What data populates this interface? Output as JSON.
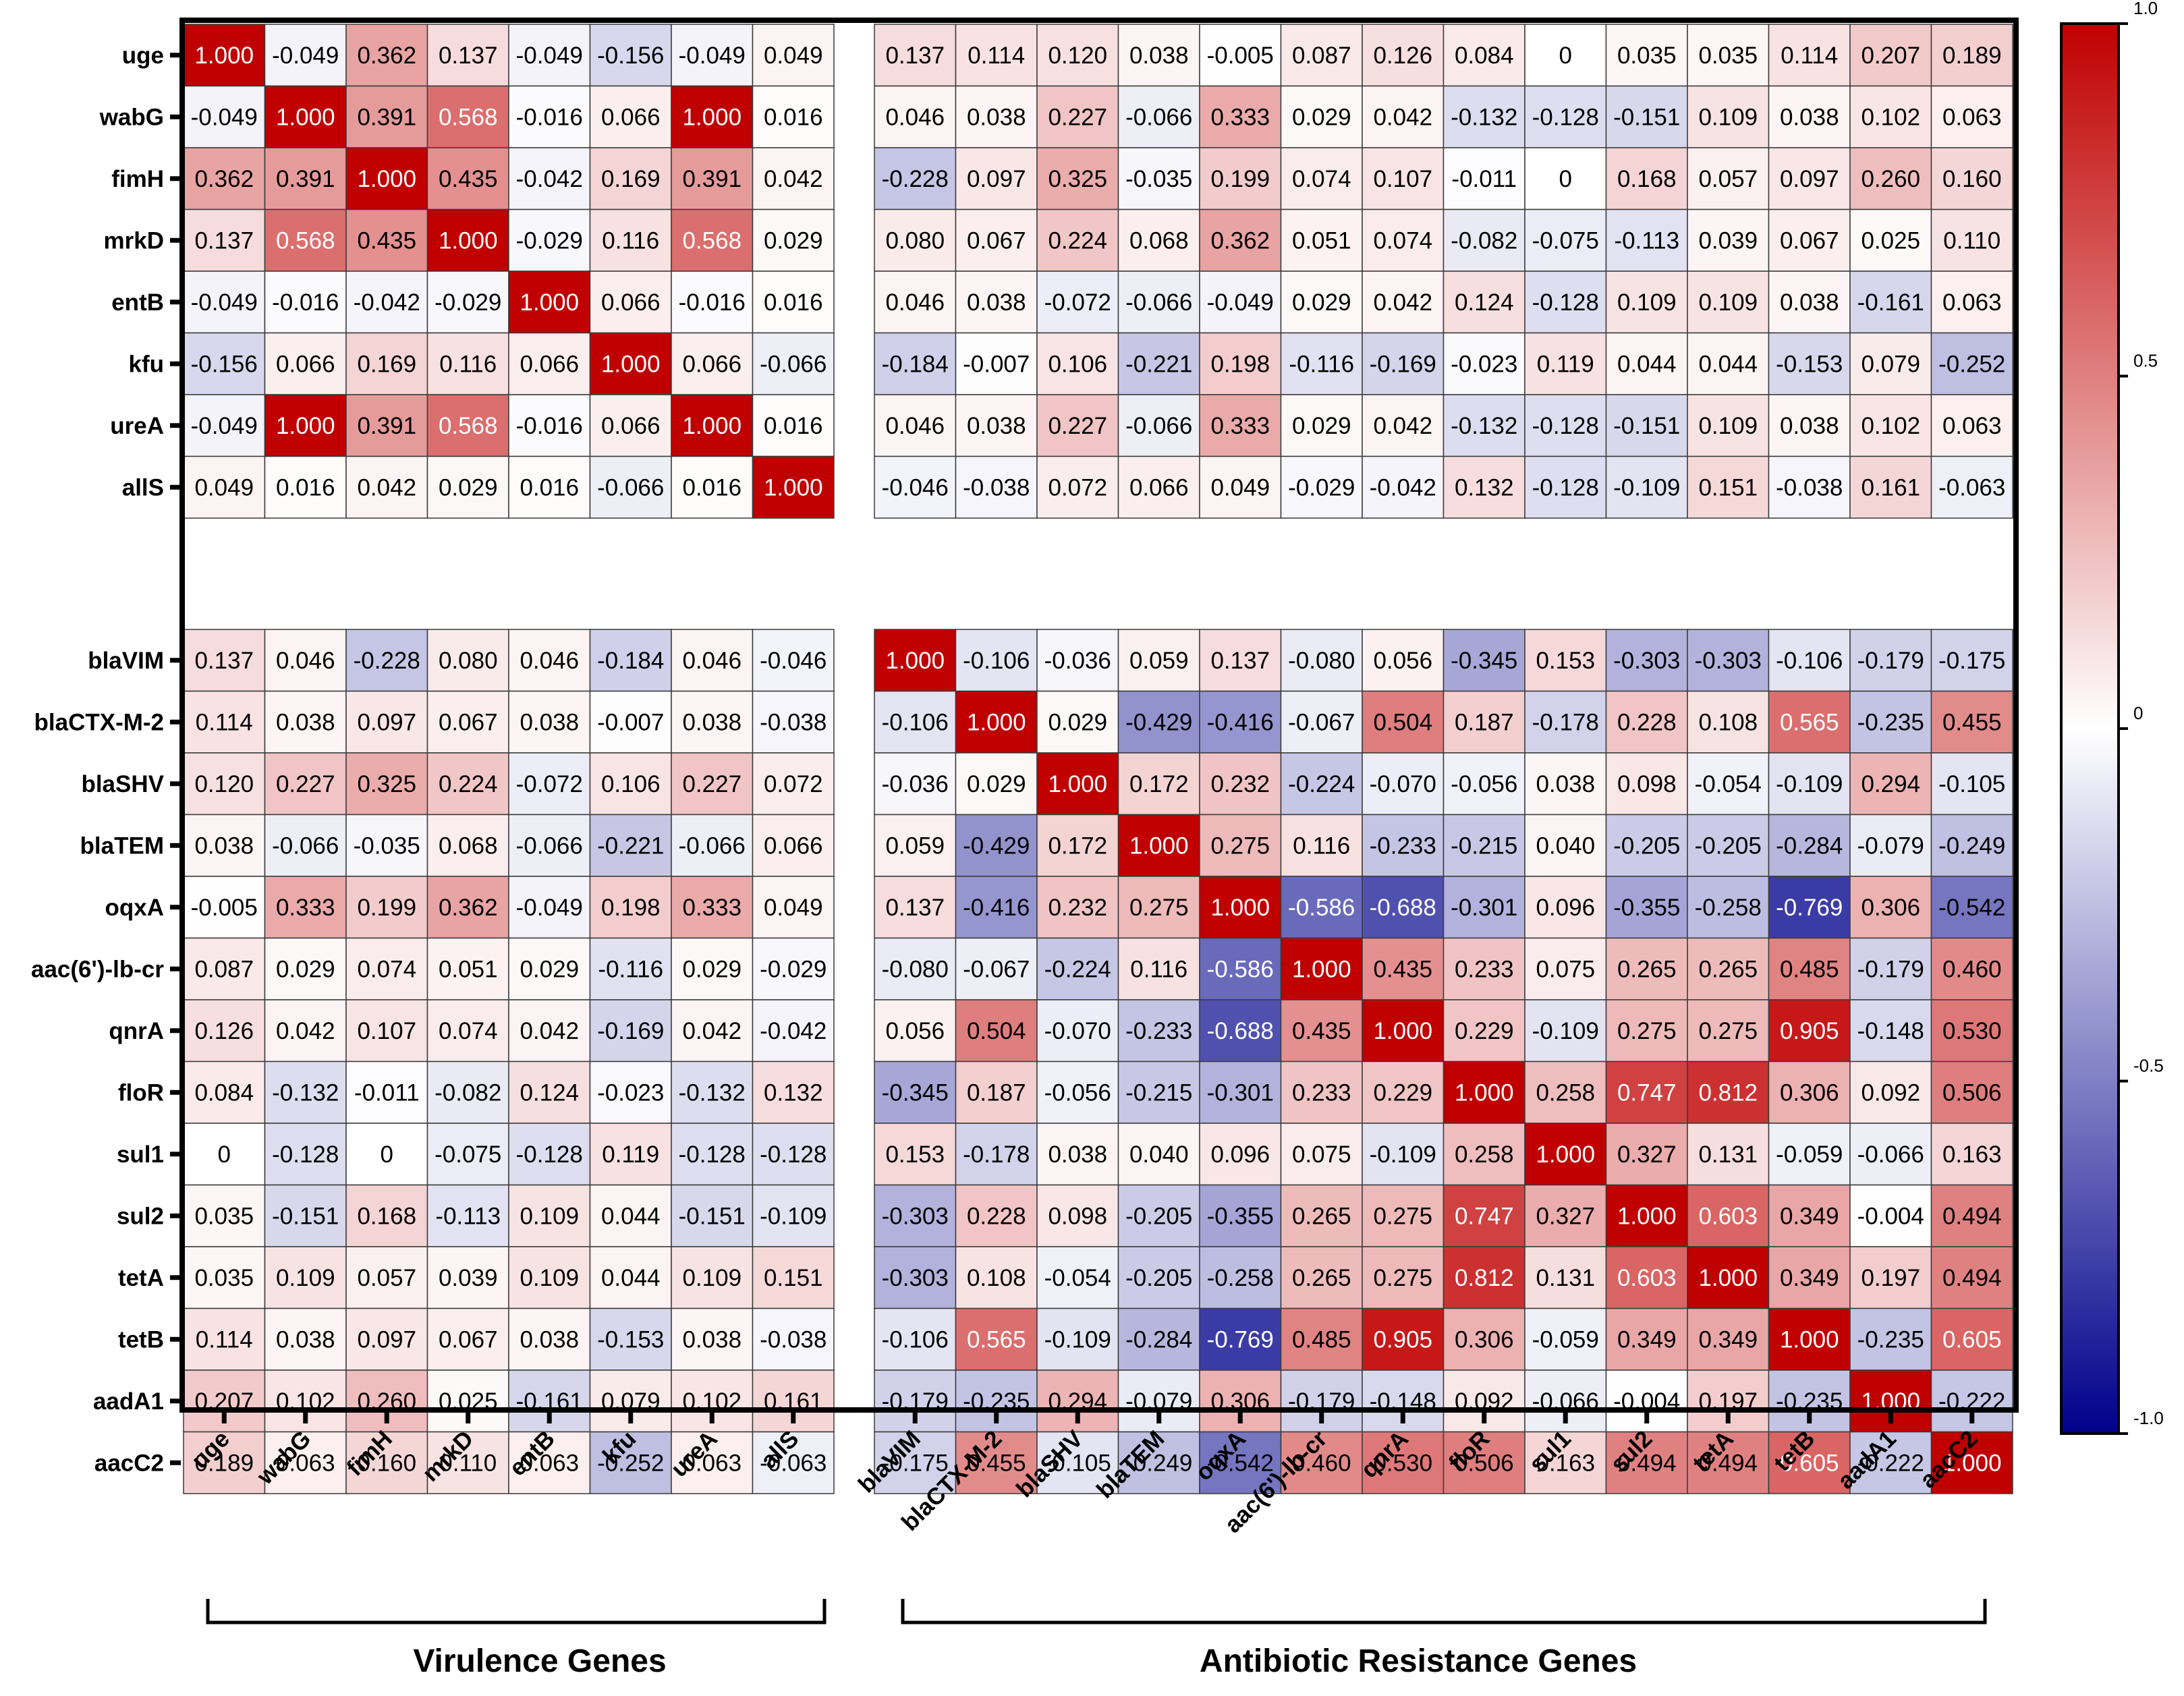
{
  "chart_data": {
    "type": "heatmap",
    "title": "",
    "colorscale": {
      "min": -1.0,
      "max": 1.0,
      "colors": [
        "#00008b",
        "#ffffff",
        "#c00000"
      ],
      "tick_values": [
        1.0,
        0.5,
        0,
        -0.5,
        -1.0
      ],
      "tick_labels": [
        "1.0",
        "0.5",
        "0",
        "-0.5",
        "-1.0"
      ]
    },
    "groups": [
      {
        "name": "Virulence Genes",
        "genes": [
          "uge",
          "wabG",
          "fimH",
          "mrkD",
          "entB",
          "kfu",
          "ureA",
          "allS"
        ]
      },
      {
        "name": "Antibiotic Resistance Genes",
        "genes": [
          "blaVIM",
          "blaCTX-M-2",
          "blaSHV",
          "blaTEM",
          "oqxA",
          "aac(6')-lb-cr",
          "qnrA",
          "floR",
          "sul1",
          "sul2",
          "tetA",
          "tetB",
          "aadA1",
          "aacC2"
        ]
      }
    ],
    "rows": [
      "uge",
      "wabG",
      "fimH",
      "mrkD",
      "entB",
      "kfu",
      "ureA",
      "allS",
      "blaVIM",
      "blaCTX-M-2",
      "blaSHV",
      "blaTEM",
      "oqxA",
      "aac(6')-lb-cr",
      "qnrA",
      "floR",
      "sul1",
      "sul2",
      "tetA",
      "tetB",
      "aadA1",
      "aacC2"
    ],
    "columns": [
      "uge",
      "wabG",
      "fimH",
      "mrkD",
      "entB",
      "kfu",
      "ureA",
      "allS",
      "blaVIM",
      "blaCTX-M-2",
      "blaSHV",
      "blaTEM",
      "oqxA",
      "aac(6')-lb-cr",
      "qnrA",
      "floR",
      "sul1",
      "sul2",
      "tetA",
      "tetB",
      "aadA1",
      "aacC2"
    ],
    "values": [
      [
        "1.000",
        "-0.049",
        "0.362",
        "0.137",
        "-0.049",
        "-0.156",
        "-0.049",
        "0.049",
        "0.137",
        "0.114",
        "0.120",
        "0.038",
        "-0.005",
        "0.087",
        "0.126",
        "0.084",
        "0",
        "0.035",
        "0.035",
        "0.114",
        "0.207",
        "0.189"
      ],
      [
        "-0.049",
        "1.000",
        "0.391",
        "0.568",
        "-0.016",
        "0.066",
        "1.000",
        "0.016",
        "0.046",
        "0.038",
        "0.227",
        "-0.066",
        "0.333",
        "0.029",
        "0.042",
        "-0.132",
        "-0.128",
        "-0.151",
        "0.109",
        "0.038",
        "0.102",
        "0.063"
      ],
      [
        "0.362",
        "0.391",
        "1.000",
        "0.435",
        "-0.042",
        "0.169",
        "0.391",
        "0.042",
        "-0.228",
        "0.097",
        "0.325",
        "-0.035",
        "0.199",
        "0.074",
        "0.107",
        "-0.011",
        "0",
        "0.168",
        "0.057",
        "0.097",
        "0.260",
        "0.160"
      ],
      [
        "0.137",
        "0.568",
        "0.435",
        "1.000",
        "-0.029",
        "0.116",
        "0.568",
        "0.029",
        "0.080",
        "0.067",
        "0.224",
        "0.068",
        "0.362",
        "0.051",
        "0.074",
        "-0.082",
        "-0.075",
        "-0.113",
        "0.039",
        "0.067",
        "0.025",
        "0.110"
      ],
      [
        "-0.049",
        "-0.016",
        "-0.042",
        "-0.029",
        "1.000",
        "0.066",
        "-0.016",
        "0.016",
        "0.046",
        "0.038",
        "-0.072",
        "-0.066",
        "-0.049",
        "0.029",
        "0.042",
        "0.124",
        "-0.128",
        "0.109",
        "0.109",
        "0.038",
        "-0.161",
        "0.063"
      ],
      [
        "-0.156",
        "0.066",
        "0.169",
        "0.116",
        "0.066",
        "1.000",
        "0.066",
        "-0.066",
        "-0.184",
        "-0.007",
        "0.106",
        "-0.221",
        "0.198",
        "-0.116",
        "-0.169",
        "-0.023",
        "0.119",
        "0.044",
        "0.044",
        "-0.153",
        "0.079",
        "-0.252"
      ],
      [
        "-0.049",
        "1.000",
        "0.391",
        "0.568",
        "-0.016",
        "0.066",
        "1.000",
        "0.016",
        "0.046",
        "0.038",
        "0.227",
        "-0.066",
        "0.333",
        "0.029",
        "0.042",
        "-0.132",
        "-0.128",
        "-0.151",
        "0.109",
        "0.038",
        "0.102",
        "0.063"
      ],
      [
        "0.049",
        "0.016",
        "0.042",
        "0.029",
        "0.016",
        "-0.066",
        "0.016",
        "1.000",
        "-0.046",
        "-0.038",
        "0.072",
        "0.066",
        "0.049",
        "-0.029",
        "-0.042",
        "0.132",
        "-0.128",
        "-0.109",
        "0.151",
        "-0.038",
        "0.161",
        "-0.063"
      ],
      [
        "0.137",
        "0.046",
        "-0.228",
        "0.080",
        "0.046",
        "-0.184",
        "0.046",
        "-0.046",
        "1.000",
        "-0.106",
        "-0.036",
        "0.059",
        "0.137",
        "-0.080",
        "0.056",
        "-0.345",
        "0.153",
        "-0.303",
        "-0.303",
        "-0.106",
        "-0.179",
        "-0.175"
      ],
      [
        "0.114",
        "0.038",
        "0.097",
        "0.067",
        "0.038",
        "-0.007",
        "0.038",
        "-0.038",
        "-0.106",
        "1.000",
        "0.029",
        "-0.429",
        "-0.416",
        "-0.067",
        "0.504",
        "0.187",
        "-0.178",
        "0.228",
        "0.108",
        "0.565",
        "-0.235",
        "0.455"
      ],
      [
        "0.120",
        "0.227",
        "0.325",
        "0.224",
        "-0.072",
        "0.106",
        "0.227",
        "0.072",
        "-0.036",
        "0.029",
        "1.000",
        "0.172",
        "0.232",
        "-0.224",
        "-0.070",
        "-0.056",
        "0.038",
        "0.098",
        "-0.054",
        "-0.109",
        "0.294",
        "-0.105"
      ],
      [
        "0.038",
        "-0.066",
        "-0.035",
        "0.068",
        "-0.066",
        "-0.221",
        "-0.066",
        "0.066",
        "0.059",
        "-0.429",
        "0.172",
        "1.000",
        "0.275",
        "0.116",
        "-0.233",
        "-0.215",
        "0.040",
        "-0.205",
        "-0.205",
        "-0.284",
        "-0.079",
        "-0.249"
      ],
      [
        "-0.005",
        "0.333",
        "0.199",
        "0.362",
        "-0.049",
        "0.198",
        "0.333",
        "0.049",
        "0.137",
        "-0.416",
        "0.232",
        "0.275",
        "1.000",
        "-0.586",
        "-0.688",
        "-0.301",
        "0.096",
        "-0.355",
        "-0.258",
        "-0.769",
        "0.306",
        "-0.542"
      ],
      [
        "0.087",
        "0.029",
        "0.074",
        "0.051",
        "0.029",
        "-0.116",
        "0.029",
        "-0.029",
        "-0.080",
        "-0.067",
        "-0.224",
        "0.116",
        "-0.586",
        "1.000",
        "0.435",
        "0.233",
        "0.075",
        "0.265",
        "0.265",
        "0.485",
        "-0.179",
        "0.460"
      ],
      [
        "0.126",
        "0.042",
        "0.107",
        "0.074",
        "0.042",
        "-0.169",
        "0.042",
        "-0.042",
        "0.056",
        "0.504",
        "-0.070",
        "-0.233",
        "-0.688",
        "0.435",
        "1.000",
        "0.229",
        "-0.109",
        "0.275",
        "0.275",
        "0.905",
        "-0.148",
        "0.530"
      ],
      [
        "0.084",
        "-0.132",
        "-0.011",
        "-0.082",
        "0.124",
        "-0.023",
        "-0.132",
        "0.132",
        "-0.345",
        "0.187",
        "-0.056",
        "-0.215",
        "-0.301",
        "0.233",
        "0.229",
        "1.000",
        "0.258",
        "0.747",
        "0.812",
        "0.306",
        "0.092",
        "0.506"
      ],
      [
        "0",
        "-0.128",
        "0",
        "-0.075",
        "-0.128",
        "0.119",
        "-0.128",
        "-0.128",
        "0.153",
        "-0.178",
        "0.038",
        "0.040",
        "0.096",
        "0.075",
        "-0.109",
        "0.258",
        "1.000",
        "0.327",
        "0.131",
        "-0.059",
        "-0.066",
        "0.163"
      ],
      [
        "0.035",
        "-0.151",
        "0.168",
        "-0.113",
        "0.109",
        "0.044",
        "-0.151",
        "-0.109",
        "-0.303",
        "0.228",
        "0.098",
        "-0.205",
        "-0.355",
        "0.265",
        "0.275",
        "0.747",
        "0.327",
        "1.000",
        "0.603",
        "0.349",
        "-0.004",
        "0.494"
      ],
      [
        "0.035",
        "0.109",
        "0.057",
        "0.039",
        "0.109",
        "0.044",
        "0.109",
        "0.151",
        "-0.303",
        "0.108",
        "-0.054",
        "-0.205",
        "-0.258",
        "0.265",
        "0.275",
        "0.812",
        "0.131",
        "0.603",
        "1.000",
        "0.349",
        "0.197",
        "0.494"
      ],
      [
        "0.114",
        "0.038",
        "0.097",
        "0.067",
        "0.038",
        "-0.153",
        "0.038",
        "-0.038",
        "-0.106",
        "0.565",
        "-0.109",
        "-0.284",
        "-0.769",
        "0.485",
        "0.905",
        "0.306",
        "-0.059",
        "0.349",
        "0.349",
        "1.000",
        "-0.235",
        "0.605"
      ],
      [
        "0.207",
        "0.102",
        "0.260",
        "0.025",
        "-0.161",
        "0.079",
        "0.102",
        "0.161",
        "-0.179",
        "-0.235",
        "0.294",
        "-0.079",
        "0.306",
        "-0.179",
        "-0.148",
        "0.092",
        "-0.066",
        "-0.004",
        "0.197",
        "-0.235",
        "1.000",
        "-0.222"
      ],
      [
        "0.189",
        "0.063",
        "0.160",
        "0.110",
        "0.063",
        "-0.252",
        "0.063",
        "-0.063",
        "-0.175",
        "0.455",
        "-0.105",
        "-0.249",
        "-0.542",
        "0.460",
        "0.530",
        "0.506",
        "0.163",
        "0.494",
        "0.494",
        "0.605",
        "-0.222",
        "1.000"
      ]
    ]
  }
}
